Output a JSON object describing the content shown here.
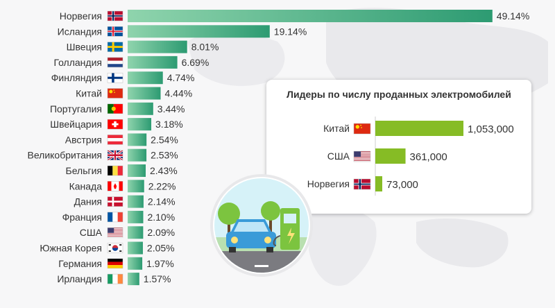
{
  "chart_data": [
    {
      "type": "bar",
      "orientation": "horizontal",
      "categories": [
        "Норвегия",
        "Исландия",
        "Швеция",
        "Голландия",
        "Финляндия",
        "Китай",
        "Португалия",
        "Швейцария",
        "Австрия",
        "Великобритания",
        "Бельгия",
        "Канада",
        "Дания",
        "Франция",
        "США",
        "Южная Корея",
        "Германия",
        "Ирландия"
      ],
      "values": [
        49.14,
        19.14,
        8.01,
        6.69,
        4.74,
        4.44,
        3.44,
        3.18,
        2.54,
        2.53,
        2.43,
        2.22,
        2.14,
        2.1,
        2.09,
        2.05,
        1.97,
        1.57
      ],
      "value_labels": [
        "49.14%",
        "19.14%",
        "8.01%",
        "6.69%",
        "4.74%",
        "4.44%",
        "3.44%",
        "3.18%",
        "2.54%",
        "2.53%",
        "2.43%",
        "2.22%",
        "2.14%",
        "2.10%",
        "2.09%",
        "2.05%",
        "1.97%",
        "1.57%"
      ],
      "flags": [
        "norway",
        "iceland",
        "sweden",
        "netherlands",
        "finland",
        "china",
        "portugal",
        "switzerland",
        "austria",
        "uk",
        "belgium",
        "canada",
        "denmark",
        "france",
        "usa",
        "south-korea",
        "germany",
        "ireland"
      ],
      "bar_color_start": "#2d9b72",
      "bar_color_end": "#8fd4ad",
      "xlim": [
        0,
        50
      ],
      "grid": false
    },
    {
      "type": "bar",
      "orientation": "horizontal",
      "title": "Лидеры по числу проданных электромобилей",
      "categories": [
        "Китай",
        "США",
        "Норвегия"
      ],
      "values": [
        1053000,
        361000,
        73000
      ],
      "value_labels": [
        "1,053,000",
        "361,000",
        "73,000"
      ],
      "flags": [
        "china",
        "usa",
        "norway"
      ],
      "bar_color": "#86bc25",
      "xlim": [
        0,
        1100000
      ],
      "grid": false
    }
  ],
  "colors": {
    "accent_green": "#2d9b72",
    "inset_green": "#86bc25",
    "map": "#e7e7ea"
  }
}
